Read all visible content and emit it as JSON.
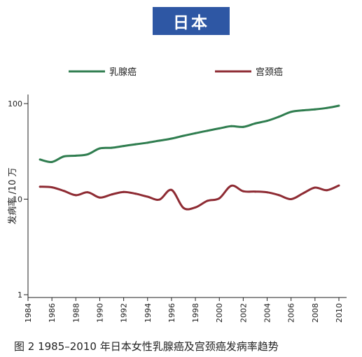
{
  "title": "日本",
  "caption": "图 2  1985–2010 年日本女性乳腺癌及宫颈癌发病率趋势",
  "chart_data": {
    "type": "line",
    "title": "日本",
    "xlabel": "",
    "ylabel": "发病率 /10 万",
    "y_scale": "log",
    "xlim": [
      1984,
      2010.5
    ],
    "ylim": [
      1,
      100
    ],
    "x_ticks": [
      "1984",
      "1986",
      "1988",
      "1990",
      "1992",
      "1994",
      "1996",
      "1998",
      "2000",
      "2002",
      "2004",
      "2006",
      "2008",
      "2010"
    ],
    "y_ticks": [
      "1",
      "10",
      "100"
    ],
    "legend_position": "top",
    "series": [
      {
        "name": "乳腺癌",
        "color": "#2f7d4f",
        "x": [
          1985,
          1986,
          1987,
          1988,
          1989,
          1990,
          1991,
          1992,
          1993,
          1994,
          1995,
          1996,
          1997,
          1998,
          1999,
          2000,
          2001,
          2002,
          2003,
          2004,
          2005,
          2006,
          2007,
          2008,
          2009,
          2010
        ],
        "y": [
          26,
          24.5,
          28,
          28.5,
          29.5,
          34,
          34.5,
          36,
          37.5,
          39,
          41,
          43,
          46,
          49,
          52,
          55,
          58,
          57,
          62,
          66,
          73,
          82,
          85,
          87,
          90,
          95
        ]
      },
      {
        "name": "宫颈癌",
        "color": "#8e2b33",
        "x": [
          1985,
          1986,
          1987,
          1988,
          1989,
          1990,
          1991,
          1992,
          1993,
          1994,
          1995,
          1996,
          1997,
          1998,
          1999,
          2000,
          2001,
          2002,
          2003,
          2004,
          2005,
          2006,
          2007,
          2008,
          2009,
          2010
        ],
        "y": [
          13.5,
          13.3,
          12.2,
          11,
          11.8,
          10.4,
          11.2,
          11.9,
          11.4,
          10.6,
          9.9,
          12.5,
          8.1,
          8.2,
          9.6,
          10.2,
          13.8,
          12.1,
          12.0,
          11.8,
          11.0,
          10.0,
          11.5,
          13.2,
          12.4,
          13.9
        ]
      }
    ]
  }
}
